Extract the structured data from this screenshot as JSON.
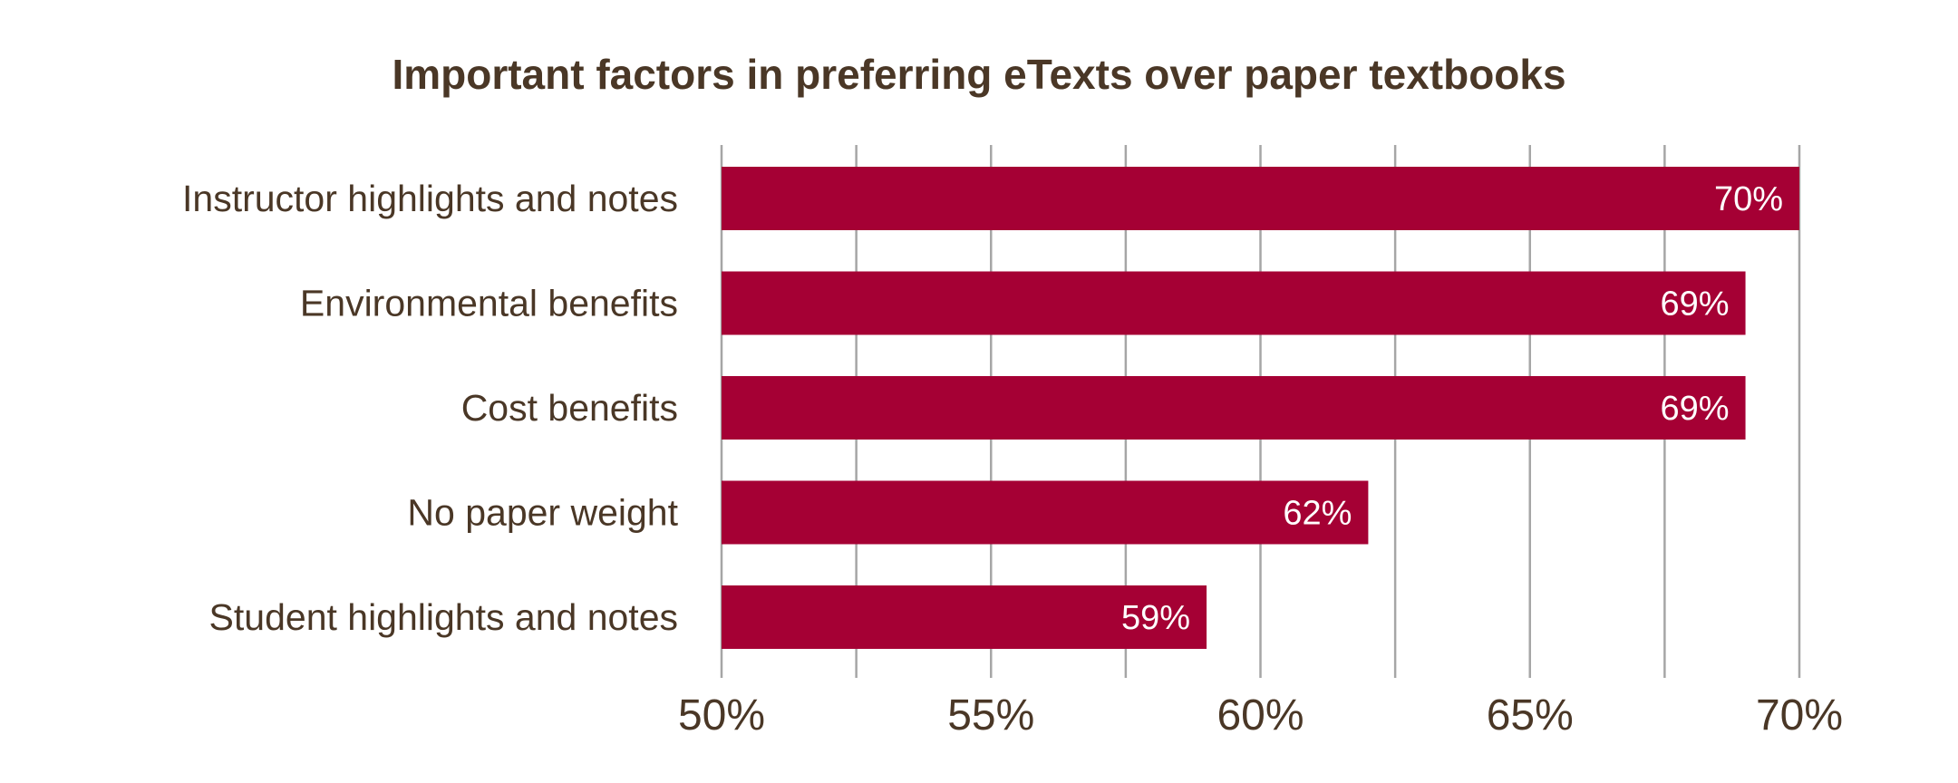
{
  "chart_data": {
    "type": "bar",
    "orientation": "horizontal",
    "title": "Important factors in preferring eTexts over paper textbooks",
    "categories": [
      "Instructor highlights and notes",
      "Environmental benefits",
      "Cost benefits",
      "No paper weight",
      "Student highlights and notes"
    ],
    "values": [
      70,
      69,
      69,
      62,
      59
    ],
    "value_labels": [
      "70%",
      "69%",
      "69%",
      "62%",
      "59%"
    ],
    "xlim": [
      50,
      70
    ],
    "xticks": [
      50,
      55,
      60,
      65,
      70
    ],
    "xtick_labels": [
      "50%",
      "55%",
      "60%",
      "65%",
      "70%"
    ],
    "grid_step": 2.5,
    "grid": true,
    "legend": "none",
    "colors": {
      "bar": "#a50034",
      "grid": "#a6a6a6",
      "text": "#4a3726",
      "value_text": "#ffffff"
    }
  }
}
